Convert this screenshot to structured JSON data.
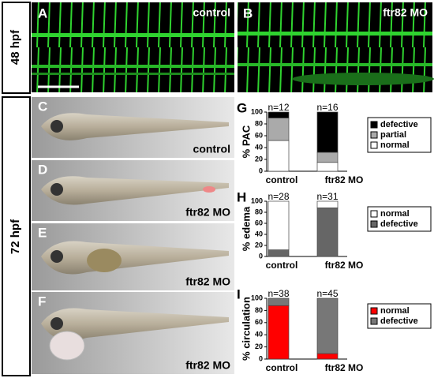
{
  "row_labels": [
    "48 hpf",
    "72 hpf"
  ],
  "panels": [
    {
      "letter": "A",
      "caption": "control"
    },
    {
      "letter": "B",
      "caption": "ftr82 MO"
    },
    {
      "letter": "C",
      "caption": "control"
    },
    {
      "letter": "D",
      "caption": "ftr82 MO"
    },
    {
      "letter": "E",
      "caption": "ftr82 MO"
    },
    {
      "letter": "F",
      "caption": "ftr82 MO"
    }
  ],
  "chart_data": [
    {
      "type": "bar",
      "stacked": true,
      "panel_label": "G",
      "y_label": "% PAC",
      "categories": [
        "control",
        "ftr82 MO"
      ],
      "n_labels": [
        "n=12",
        "n=16"
      ],
      "ylim": [
        0,
        100
      ],
      "yticks": [
        0,
        20,
        40,
        60,
        80,
        100
      ],
      "legend_reverse": true,
      "series": [
        {
          "name": "normal",
          "color": "#ffffff",
          "values": [
            52,
            15
          ]
        },
        {
          "name": "partial",
          "color": "#aaaaaa",
          "values": [
            38,
            17
          ]
        },
        {
          "name": "defective",
          "color": "#000000",
          "values": [
            10,
            68
          ]
        }
      ]
    },
    {
      "type": "bar",
      "stacked": true,
      "panel_label": "H",
      "y_label": "% edema",
      "categories": [
        "control",
        "ftr82 MO"
      ],
      "n_labels": [
        "n=28",
        "n=31"
      ],
      "ylim": [
        0,
        100
      ],
      "yticks": [
        0,
        20,
        40,
        60,
        80,
        100
      ],
      "legend_reverse": true,
      "series": [
        {
          "name": "defective",
          "color": "#666666",
          "values": [
            12,
            88
          ]
        },
        {
          "name": "normal",
          "color": "#ffffff",
          "values": [
            88,
            12
          ]
        }
      ]
    },
    {
      "type": "bar",
      "stacked": true,
      "panel_label": "I",
      "y_label": "% circulation",
      "categories": [
        "control",
        "ftr82 MO"
      ],
      "n_labels": [
        "n=38",
        "n=45"
      ],
      "ylim": [
        0,
        100
      ],
      "yticks": [
        0,
        20,
        40,
        60,
        80,
        100
      ],
      "legend_reverse": false,
      "series": [
        {
          "name": "normal",
          "color": "#ff0000",
          "values": [
            88,
            9
          ]
        },
        {
          "name": "defective",
          "color": "#777777",
          "values": [
            12,
            91
          ]
        }
      ]
    }
  ]
}
